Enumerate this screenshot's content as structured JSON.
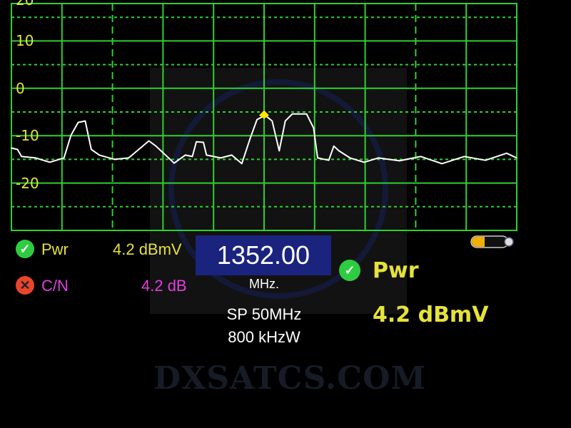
{
  "chart_data": {
    "type": "line",
    "title": "",
    "xlabel": "",
    "ylabel": "",
    "yticks": [
      "20",
      "10",
      "0",
      "-10",
      "-20"
    ],
    "ylim": [
      -30,
      20
    ],
    "xlim": [
      1327,
      1377
    ],
    "grid": true,
    "marker": {
      "x": 1352.0,
      "y": -5.7,
      "color": "#ffe600"
    },
    "colors": {
      "grid": "#2fd02f",
      "trace": "#ffffff",
      "ytick": "#e6e23a"
    },
    "x": [
      1327.0,
      1327.6,
      1328.0,
      1329.4,
      1330.8,
      1332.2,
      1332.9,
      1333.6,
      1334.3,
      1334.9,
      1335.7,
      1337.2,
      1338.6,
      1339.6,
      1340.6,
      1341.3,
      1341.9,
      1343.1,
      1344.2,
      1344.9,
      1345.3,
      1346.0,
      1346.3,
      1347.7,
      1348.8,
      1349.8,
      1350.6,
      1351.3,
      1352.1,
      1352.8,
      1353.5,
      1354.1,
      1354.8,
      1356.2,
      1356.9,
      1357.3,
      1358.4,
      1358.9,
      1359.4,
      1360.5,
      1361.9,
      1363.3,
      1365.4,
      1367.5,
      1369.6,
      1371.8,
      1373.9,
      1376.0,
      1377.0
    ],
    "y": [
      -12.6,
      -12.9,
      -14.4,
      -14.7,
      -15.6,
      -14.7,
      -9.9,
      -7.2,
      -6.9,
      -12.9,
      -14.1,
      -15.0,
      -14.7,
      -12.9,
      -11.1,
      -12.2,
      -13.4,
      -15.8,
      -14.1,
      -14.4,
      -11.3,
      -11.4,
      -14.1,
      -14.7,
      -14.1,
      -15.9,
      -10.7,
      -6.6,
      -5.7,
      -6.9,
      -13.2,
      -6.9,
      -5.4,
      -5.4,
      -8.4,
      -14.7,
      -15.2,
      -12.2,
      -13.2,
      -14.7,
      -15.6,
      -14.7,
      -15.3,
      -14.4,
      -15.9,
      -14.4,
      -15.2,
      -13.7,
      -14.7
    ]
  },
  "readout": {
    "pwr_label": "Pwr",
    "pwr_value": "4.2 dBmV",
    "pwr_status": "ok",
    "cn_label": "C/N",
    "cn_value": "4.2 dB",
    "cn_status": "fail",
    "frequency": "1352.00",
    "frequency_unit": "MHz.",
    "span": "SP 50MHz",
    "rbw": "800 kHzW",
    "big_label": "Pwr",
    "big_value": "4.2 dBmV",
    "battery_icon": "battery-icon"
  },
  "watermark": "DXSATCS.COM",
  "colors": {
    "ok": "#2ecc40",
    "fail": "#e8452c",
    "cn": "#e040e0",
    "pwr": "#e6e23a",
    "freq_box": "#1a237e"
  }
}
